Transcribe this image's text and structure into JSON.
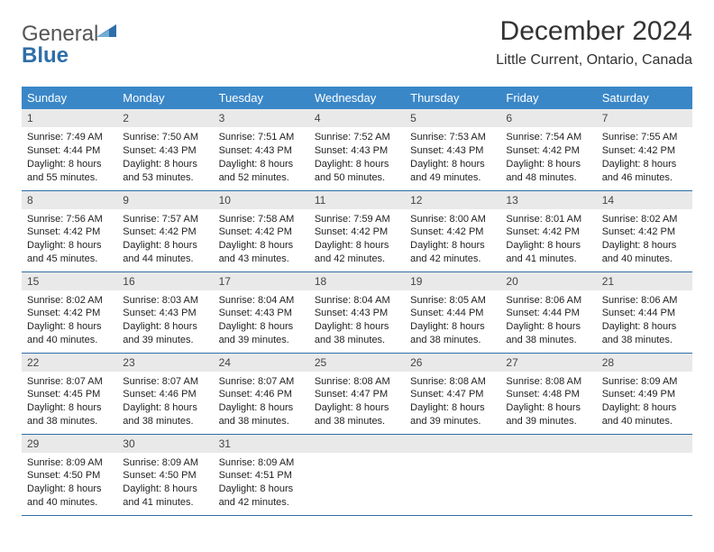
{
  "colors": {
    "header_bg": "#3a87c8",
    "header_text": "#ffffff",
    "daynum_bg": "#e9e9e9",
    "rule": "#2f6ea8",
    "logo_blue": "#2f6ea8",
    "logo_gray": "#555555"
  },
  "logo": {
    "line1": "General",
    "line2": "Blue"
  },
  "title": {
    "month": "December 2024",
    "location": "Little Current, Ontario, Canada"
  },
  "weekdays": [
    "Sunday",
    "Monday",
    "Tuesday",
    "Wednesday",
    "Thursday",
    "Friday",
    "Saturday"
  ],
  "weeks": [
    [
      {
        "n": "1",
        "sr": "Sunrise: 7:49 AM",
        "ss": "Sunset: 4:44 PM",
        "dl1": "Daylight: 8 hours",
        "dl2": "and 55 minutes."
      },
      {
        "n": "2",
        "sr": "Sunrise: 7:50 AM",
        "ss": "Sunset: 4:43 PM",
        "dl1": "Daylight: 8 hours",
        "dl2": "and 53 minutes."
      },
      {
        "n": "3",
        "sr": "Sunrise: 7:51 AM",
        "ss": "Sunset: 4:43 PM",
        "dl1": "Daylight: 8 hours",
        "dl2": "and 52 minutes."
      },
      {
        "n": "4",
        "sr": "Sunrise: 7:52 AM",
        "ss": "Sunset: 4:43 PM",
        "dl1": "Daylight: 8 hours",
        "dl2": "and 50 minutes."
      },
      {
        "n": "5",
        "sr": "Sunrise: 7:53 AM",
        "ss": "Sunset: 4:43 PM",
        "dl1": "Daylight: 8 hours",
        "dl2": "and 49 minutes."
      },
      {
        "n": "6",
        "sr": "Sunrise: 7:54 AM",
        "ss": "Sunset: 4:42 PM",
        "dl1": "Daylight: 8 hours",
        "dl2": "and 48 minutes."
      },
      {
        "n": "7",
        "sr": "Sunrise: 7:55 AM",
        "ss": "Sunset: 4:42 PM",
        "dl1": "Daylight: 8 hours",
        "dl2": "and 46 minutes."
      }
    ],
    [
      {
        "n": "8",
        "sr": "Sunrise: 7:56 AM",
        "ss": "Sunset: 4:42 PM",
        "dl1": "Daylight: 8 hours",
        "dl2": "and 45 minutes."
      },
      {
        "n": "9",
        "sr": "Sunrise: 7:57 AM",
        "ss": "Sunset: 4:42 PM",
        "dl1": "Daylight: 8 hours",
        "dl2": "and 44 minutes."
      },
      {
        "n": "10",
        "sr": "Sunrise: 7:58 AM",
        "ss": "Sunset: 4:42 PM",
        "dl1": "Daylight: 8 hours",
        "dl2": "and 43 minutes."
      },
      {
        "n": "11",
        "sr": "Sunrise: 7:59 AM",
        "ss": "Sunset: 4:42 PM",
        "dl1": "Daylight: 8 hours",
        "dl2": "and 42 minutes."
      },
      {
        "n": "12",
        "sr": "Sunrise: 8:00 AM",
        "ss": "Sunset: 4:42 PM",
        "dl1": "Daylight: 8 hours",
        "dl2": "and 42 minutes."
      },
      {
        "n": "13",
        "sr": "Sunrise: 8:01 AM",
        "ss": "Sunset: 4:42 PM",
        "dl1": "Daylight: 8 hours",
        "dl2": "and 41 minutes."
      },
      {
        "n": "14",
        "sr": "Sunrise: 8:02 AM",
        "ss": "Sunset: 4:42 PM",
        "dl1": "Daylight: 8 hours",
        "dl2": "and 40 minutes."
      }
    ],
    [
      {
        "n": "15",
        "sr": "Sunrise: 8:02 AM",
        "ss": "Sunset: 4:42 PM",
        "dl1": "Daylight: 8 hours",
        "dl2": "and 40 minutes."
      },
      {
        "n": "16",
        "sr": "Sunrise: 8:03 AM",
        "ss": "Sunset: 4:43 PM",
        "dl1": "Daylight: 8 hours",
        "dl2": "and 39 minutes."
      },
      {
        "n": "17",
        "sr": "Sunrise: 8:04 AM",
        "ss": "Sunset: 4:43 PM",
        "dl1": "Daylight: 8 hours",
        "dl2": "and 39 minutes."
      },
      {
        "n": "18",
        "sr": "Sunrise: 8:04 AM",
        "ss": "Sunset: 4:43 PM",
        "dl1": "Daylight: 8 hours",
        "dl2": "and 38 minutes."
      },
      {
        "n": "19",
        "sr": "Sunrise: 8:05 AM",
        "ss": "Sunset: 4:44 PM",
        "dl1": "Daylight: 8 hours",
        "dl2": "and 38 minutes."
      },
      {
        "n": "20",
        "sr": "Sunrise: 8:06 AM",
        "ss": "Sunset: 4:44 PM",
        "dl1": "Daylight: 8 hours",
        "dl2": "and 38 minutes."
      },
      {
        "n": "21",
        "sr": "Sunrise: 8:06 AM",
        "ss": "Sunset: 4:44 PM",
        "dl1": "Daylight: 8 hours",
        "dl2": "and 38 minutes."
      }
    ],
    [
      {
        "n": "22",
        "sr": "Sunrise: 8:07 AM",
        "ss": "Sunset: 4:45 PM",
        "dl1": "Daylight: 8 hours",
        "dl2": "and 38 minutes."
      },
      {
        "n": "23",
        "sr": "Sunrise: 8:07 AM",
        "ss": "Sunset: 4:46 PM",
        "dl1": "Daylight: 8 hours",
        "dl2": "and 38 minutes."
      },
      {
        "n": "24",
        "sr": "Sunrise: 8:07 AM",
        "ss": "Sunset: 4:46 PM",
        "dl1": "Daylight: 8 hours",
        "dl2": "and 38 minutes."
      },
      {
        "n": "25",
        "sr": "Sunrise: 8:08 AM",
        "ss": "Sunset: 4:47 PM",
        "dl1": "Daylight: 8 hours",
        "dl2": "and 38 minutes."
      },
      {
        "n": "26",
        "sr": "Sunrise: 8:08 AM",
        "ss": "Sunset: 4:47 PM",
        "dl1": "Daylight: 8 hours",
        "dl2": "and 39 minutes."
      },
      {
        "n": "27",
        "sr": "Sunrise: 8:08 AM",
        "ss": "Sunset: 4:48 PM",
        "dl1": "Daylight: 8 hours",
        "dl2": "and 39 minutes."
      },
      {
        "n": "28",
        "sr": "Sunrise: 8:09 AM",
        "ss": "Sunset: 4:49 PM",
        "dl1": "Daylight: 8 hours",
        "dl2": "and 40 minutes."
      }
    ],
    [
      {
        "n": "29",
        "sr": "Sunrise: 8:09 AM",
        "ss": "Sunset: 4:50 PM",
        "dl1": "Daylight: 8 hours",
        "dl2": "and 40 minutes."
      },
      {
        "n": "30",
        "sr": "Sunrise: 8:09 AM",
        "ss": "Sunset: 4:50 PM",
        "dl1": "Daylight: 8 hours",
        "dl2": "and 41 minutes."
      },
      {
        "n": "31",
        "sr": "Sunrise: 8:09 AM",
        "ss": "Sunset: 4:51 PM",
        "dl1": "Daylight: 8 hours",
        "dl2": "and 42 minutes."
      },
      null,
      null,
      null,
      null
    ]
  ]
}
